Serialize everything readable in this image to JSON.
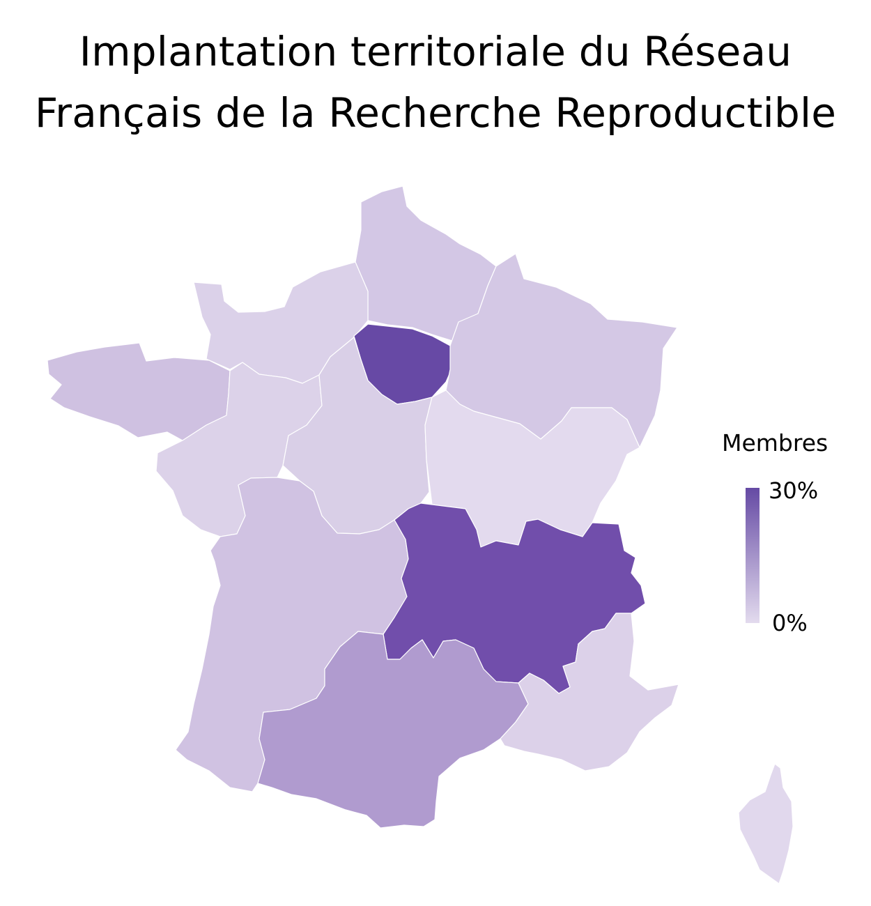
{
  "title_lines": [
    "Implantation territoriale du Réseau",
    "Français de la Recherche Reproductible"
  ],
  "legend": {
    "title": "Membres",
    "max_label": "30%",
    "min_label": "0%",
    "color_low": "#e3dbee",
    "color_high": "#654aa4"
  },
  "regions": [
    {
      "name": "Hauts-de-France",
      "color": "#d3c7e5"
    },
    {
      "name": "Normandie",
      "color": "#dbd1e9"
    },
    {
      "name": "Bretagne",
      "color": "#cfc1e1"
    },
    {
      "name": "Île-de-France",
      "color": "#6749a5"
    },
    {
      "name": "Grand Est",
      "color": "#d4c8e5"
    },
    {
      "name": "Pays de la Loire",
      "color": "#dcd2e9"
    },
    {
      "name": "Centre-Val de Loire",
      "color": "#d9cfe7"
    },
    {
      "name": "Bourgogne-Franche-Comté",
      "color": "#e3daee"
    },
    {
      "name": "Nouvelle-Aquitaine",
      "color": "#d0c2e2"
    },
    {
      "name": "Auvergne-Rhône-Alpes",
      "color": "#714eab"
    },
    {
      "name": "Occitanie",
      "color": "#b09bcf"
    },
    {
      "name": "Provence-Alpes-Côte d'Azur",
      "color": "#dcd1e9"
    },
    {
      "name": "Corse",
      "color": "#e1d8ed"
    }
  ]
}
